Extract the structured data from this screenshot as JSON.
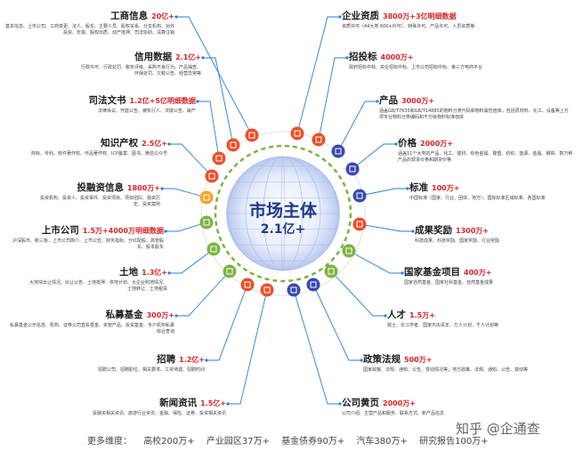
{
  "center": {
    "title": "市场主体",
    "count": "2.1亿+"
  },
  "categories": [
    {
      "id": "gongshang",
      "title": "工商信息",
      "count": "20亿+",
      "desc": "基本信息、上市公司、工商变更、法人、股东、主要人员、股权关系、分支机构、对外投资、年报、股权出质、动产抵押、司法协助、清算注销",
      "icon": "building-icon",
      "color": "#e8502a"
    },
    {
      "id": "xinyong",
      "title": "信用数据",
      "count": "2.1亿+",
      "desc": "行政许可、行政处罚、税务评级、采购不良行为、产品抽查、环保处罚、欠税公告、经营异常等",
      "icon": "credit-icon",
      "color": "#e8502a"
    },
    {
      "id": "sifa",
      "title": "司法文书",
      "count": "1.2亿+5亿明细数据",
      "desc": "法律诉讼、开庭公告、被执行人、法院公告、破产",
      "icon": "gavel-icon",
      "color": "#e8502a"
    },
    {
      "id": "zhishi",
      "title": "知识产权",
      "count": "2.5亿+",
      "desc": "商标、专利、软件著作权、作品著作权、ICP备案、图书、微信公众号",
      "icon": "bank-icon",
      "color": "#e8502a"
    },
    {
      "id": "tourongzi",
      "title": "投融资信息",
      "count": "1800万+",
      "desc": "投资机构、投资人、投资事件、投资项目、项目团队、融资历史、投资案例",
      "icon": "money-icon",
      "color": "#f5a623"
    },
    {
      "id": "shangshi",
      "title": "上市公司",
      "count": "1.5万+4000万明细数据",
      "desc": "沪深股市、新三板、上市公司简介、上市公告、财务指标、分红配股、高管股东、股本股东",
      "icon": "shield-icon",
      "color": "#7cb342"
    },
    {
      "id": "tudi",
      "title": "土地",
      "count": "1.3亿+",
      "desc": "大地块出让情况、出让公告、土地抵押、供地计划、大企业购地情况、土地转让、土地租赁",
      "icon": "land-icon",
      "color": "#7cb342"
    },
    {
      "id": "simu",
      "title": "私募基金",
      "count": "300万+",
      "desc": "私募基金公示信息、机构、证券公司直投基金、资管产品、投资基金、专户机构私募综合查询",
      "icon": "fund-icon",
      "color": "#7cb342"
    },
    {
      "id": "zhaopin",
      "title": "招聘",
      "count": "1.2亿+",
      "desc": "招聘公司、招聘职位、相关要求、工资待遇、招聘时间",
      "icon": "recruit-icon",
      "color": "#e8502a"
    },
    {
      "id": "xinwen",
      "title": "新闻资讯",
      "count": "1.5亿+",
      "desc": "投融资相关资讯、旅游行业资讯、金融、保险、证券、投资相关资讯",
      "icon": "news-icon",
      "color": "#e8502a"
    },
    {
      "id": "qiyezizhi",
      "title": "企业资质",
      "count": "3800万+3亿明细数据",
      "desc": "资质许可（44大类 600+许可）、特殊许可、产品许可、人员资质等",
      "icon": "certificate-icon",
      "color": "#e8502a"
    },
    {
      "id": "zhaotoubiao",
      "title": "招投标",
      "count": "4000万+",
      "desc": "政府招标中标、央企招标中标、上市公司招标中标、第三方电商平台",
      "icon": "tender-icon",
      "color": "#e8502a"
    },
    {
      "id": "chanpin",
      "title": "产品",
      "count": "3000万+",
      "desc": "涵盖GB/T7635和GB/T14885的物料分类代码和物料属性值库，包括原材料、化工、设备等上万项专业物料分类编码和千万级物料标准值库",
      "icon": "product-icon",
      "color": "#3949ab"
    },
    {
      "id": "jiage",
      "title": "价格",
      "count": "2000万+",
      "desc": "涵盖11个大类的产品、化工、建材、有色金属、橡塑、纺织、能源、金属、钢铁、数万种产品的现货价格和期货价格",
      "icon": "price-icon",
      "color": "#3949ab"
    },
    {
      "id": "biaozhun",
      "title": "标准",
      "count": "100万+",
      "desc": "中国标准（国家、行业、团体、地方）、国际标准区域标准、各国标准",
      "icon": "standard-icon",
      "color": "#3949ab"
    },
    {
      "id": "chengguo",
      "title": "成果奖励",
      "count": "1300万+",
      "desc": "科技成果、科技奖励、国家奖励、行业奖励",
      "icon": "trophy-icon",
      "color": "#e8502a"
    },
    {
      "id": "jijin",
      "title": "国家基金项目",
      "count": "400万+",
      "desc": "国家自然基金、国家社科基金、自然基金成果",
      "icon": "fund-project-icon",
      "color": "#7cb342"
    },
    {
      "id": "rencai",
      "title": "人才",
      "count": "1.5万+",
      "desc": "院士、长江学者、国家杰出青年、万人计划、千人计划等",
      "icon": "talent-icon",
      "color": "#7cb342"
    },
    {
      "id": "zhengce",
      "title": "政策法规",
      "count": "500万+",
      "desc": "国家政策、法规、通知、公告、变动情况等；地方政策、法规、通知、公告、变动等",
      "icon": "policy-icon",
      "color": "#3949ab"
    },
    {
      "id": "huangye",
      "title": "公司黄页",
      "count": "2000万+",
      "desc": "公司介绍、主营产品和服务、联系方式、新产品信息",
      "icon": "yellowpage-icon",
      "color": "#3949ab"
    }
  ],
  "ring_icons": [
    {
      "icon": "ring-icon-a",
      "color": "#e8502a"
    },
    {
      "icon": "ring-icon-b",
      "color": "#e8502a"
    },
    {
      "icon": "ring-icon-c",
      "color": "#e8502a"
    },
    {
      "icon": "ring-icon-d",
      "color": "#e8502a"
    },
    {
      "icon": "ring-icon-e",
      "color": "#3949ab"
    },
    {
      "icon": "ring-icon-f",
      "color": "#3949ab"
    },
    {
      "icon": "ring-icon-g",
      "color": "#3949ab"
    },
    {
      "icon": "ring-icon-h",
      "color": "#3949ab"
    },
    {
      "icon": "ring-icon-i",
      "color": "#e8502a"
    }
  ],
  "footer": {
    "label": "更多维度：",
    "items": [
      "高校200万+",
      "产业园区37万+",
      "基金债券90万+",
      "汽车380万+",
      "研究报告100万+"
    ]
  },
  "watermark": "知乎 @企通查"
}
